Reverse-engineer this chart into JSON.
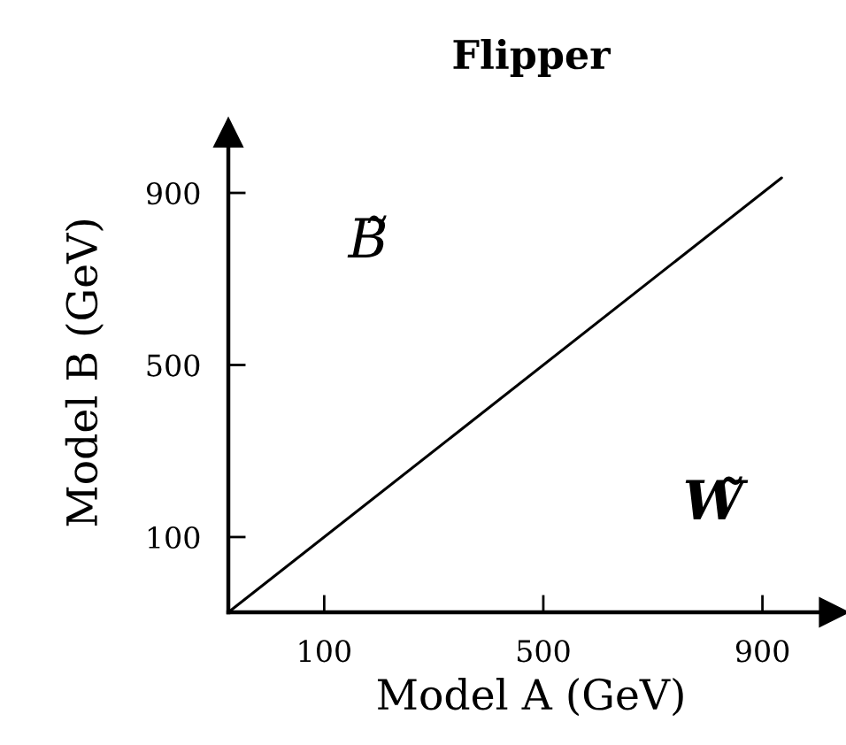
{
  "chart_data": {
    "type": "line",
    "title": "Flipper",
    "xlabel": "Model A (GeV)",
    "ylabel": "Model B (GeV)",
    "x": [
      -75,
      935
    ],
    "series": [
      {
        "color": "#000000",
        "values": [
          -75,
          935
        ]
      }
    ],
    "xlim": [
      -75,
      1030
    ],
    "ylim": [
      -75,
      1040
    ],
    "xticks": [
      100,
      500,
      900
    ],
    "yticks": [
      100,
      500,
      900
    ],
    "annotations": [
      "B̃",
      "W̃"
    ]
  }
}
